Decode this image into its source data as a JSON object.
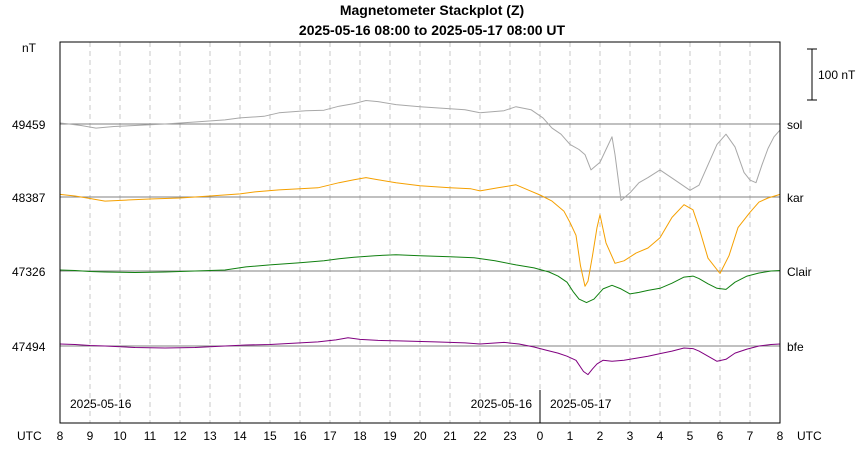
{
  "chart_data": {
    "type": "line",
    "title": "Magnetometer Stackplot (Z)",
    "subtitle": "2025-05-16 08:00 to 2025-05-17 08:00 UT",
    "y_unit_label": "nT",
    "scale_bar_label": "100 nT",
    "x_unit_left": "UTC",
    "x_unit_right": "UTC",
    "x_ticks": [
      "8",
      "9",
      "10",
      "11",
      "12",
      "13",
      "14",
      "15",
      "16",
      "17",
      "18",
      "19",
      "20",
      "21",
      "22",
      "23",
      "0",
      "1",
      "2",
      "3",
      "4",
      "5",
      "6",
      "7",
      "8"
    ],
    "date_labels": [
      "2025-05-16",
      "2025-05-16",
      "2025-05-17"
    ],
    "x_range_hours": [
      0,
      24
    ],
    "grid": "vertical dashed hourly",
    "series": [
      {
        "name": "sol",
        "baseline": "49459",
        "color": "#a8a8a8",
        "points": [
          [
            0,
            2
          ],
          [
            0.3,
            0
          ],
          [
            0.7,
            -3
          ],
          [
            1.2,
            -8
          ],
          [
            1.8,
            -5
          ],
          [
            2.5,
            -3
          ],
          [
            3.5,
            0
          ],
          [
            4.5,
            4
          ],
          [
            5.5,
            8
          ],
          [
            6,
            12
          ],
          [
            6.8,
            15
          ],
          [
            7.3,
            22
          ],
          [
            8.2,
            26
          ],
          [
            8.8,
            27
          ],
          [
            9.3,
            35
          ],
          [
            9.8,
            40
          ],
          [
            10.2,
            46
          ],
          [
            10.6,
            44
          ],
          [
            11.2,
            38
          ],
          [
            12,
            34
          ],
          [
            13,
            30
          ],
          [
            13.5,
            28
          ],
          [
            14,
            22
          ],
          [
            14.8,
            26
          ],
          [
            15.2,
            34
          ],
          [
            15.7,
            28
          ],
          [
            16.1,
            12
          ],
          [
            16.4,
            -8
          ],
          [
            16.7,
            -20
          ],
          [
            17,
            -40
          ],
          [
            17.3,
            -50
          ],
          [
            17.5,
            -60
          ],
          [
            17.7,
            -90
          ],
          [
            18,
            -75
          ],
          [
            18.2,
            -50
          ],
          [
            18.4,
            -25
          ],
          [
            18.5,
            -60
          ],
          [
            18.7,
            -150
          ],
          [
            19,
            -135
          ],
          [
            19.3,
            -115
          ],
          [
            19.6,
            -105
          ],
          [
            20,
            -90
          ],
          [
            20.5,
            -110
          ],
          [
            21,
            -130
          ],
          [
            21.3,
            -120
          ],
          [
            21.6,
            -80
          ],
          [
            21.9,
            -40
          ],
          [
            22.2,
            -20
          ],
          [
            22.5,
            -45
          ],
          [
            22.8,
            -95
          ],
          [
            23,
            -110
          ],
          [
            23.2,
            -115
          ],
          [
            23.4,
            -80
          ],
          [
            23.6,
            -48
          ],
          [
            23.8,
            -25
          ],
          [
            24,
            -12
          ]
        ]
      },
      {
        "name": "kar",
        "baseline": "48387",
        "color": "#f5a000",
        "points": [
          [
            0,
            5
          ],
          [
            0.5,
            2
          ],
          [
            1,
            -3
          ],
          [
            1.5,
            -8
          ],
          [
            2.2,
            -6
          ],
          [
            3,
            -4
          ],
          [
            4,
            -2
          ],
          [
            5,
            2
          ],
          [
            6,
            6
          ],
          [
            6.5,
            10
          ],
          [
            7.3,
            14
          ],
          [
            8,
            16
          ],
          [
            8.6,
            18
          ],
          [
            9.3,
            28
          ],
          [
            9.8,
            34
          ],
          [
            10.2,
            38
          ],
          [
            10.6,
            34
          ],
          [
            11.2,
            28
          ],
          [
            12,
            22
          ],
          [
            13,
            18
          ],
          [
            13.7,
            16
          ],
          [
            14,
            12
          ],
          [
            14.6,
            18
          ],
          [
            15.2,
            24
          ],
          [
            15.6,
            14
          ],
          [
            16,
            4
          ],
          [
            16.4,
            -8
          ],
          [
            16.8,
            -28
          ],
          [
            17,
            -50
          ],
          [
            17.2,
            -75
          ],
          [
            17.35,
            -135
          ],
          [
            17.5,
            -175
          ],
          [
            17.6,
            -165
          ],
          [
            17.75,
            -115
          ],
          [
            17.9,
            -60
          ],
          [
            18,
            -35
          ],
          [
            18.2,
            -90
          ],
          [
            18.5,
            -130
          ],
          [
            18.8,
            -125
          ],
          [
            19.2,
            -110
          ],
          [
            19.6,
            -100
          ],
          [
            20,
            -80
          ],
          [
            20.4,
            -40
          ],
          [
            20.8,
            -15
          ],
          [
            21.1,
            -25
          ],
          [
            21.3,
            -60
          ],
          [
            21.6,
            -120
          ],
          [
            22,
            -150
          ],
          [
            22.3,
            -115
          ],
          [
            22.6,
            -60
          ],
          [
            23,
            -30
          ],
          [
            23.3,
            -10
          ],
          [
            23.6,
            -2
          ],
          [
            24,
            5
          ]
        ]
      },
      {
        "name": "Clair",
        "baseline": "47326",
        "color": "#108010",
        "points": [
          [
            0,
            2
          ],
          [
            0.5,
            1
          ],
          [
            1,
            -1
          ],
          [
            1.5,
            -2
          ],
          [
            2.5,
            -3
          ],
          [
            3.5,
            -2
          ],
          [
            4.5,
            0
          ],
          [
            5.5,
            2
          ],
          [
            6.2,
            8
          ],
          [
            7,
            12
          ],
          [
            8,
            16
          ],
          [
            8.8,
            20
          ],
          [
            9.3,
            24
          ],
          [
            9.8,
            27
          ],
          [
            10.5,
            30
          ],
          [
            11.2,
            32
          ],
          [
            12,
            30
          ],
          [
            13,
            28
          ],
          [
            13.8,
            26
          ],
          [
            14.5,
            20
          ],
          [
            15.2,
            12
          ],
          [
            15.8,
            6
          ],
          [
            16.3,
            -2
          ],
          [
            16.6,
            -10
          ],
          [
            16.9,
            -22
          ],
          [
            17.1,
            -40
          ],
          [
            17.3,
            -55
          ],
          [
            17.55,
            -62
          ],
          [
            17.8,
            -55
          ],
          [
            18.1,
            -35
          ],
          [
            18.4,
            -28
          ],
          [
            18.7,
            -35
          ],
          [
            19,
            -45
          ],
          [
            19.3,
            -42
          ],
          [
            19.6,
            -38
          ],
          [
            20,
            -34
          ],
          [
            20.4,
            -24
          ],
          [
            20.8,
            -12
          ],
          [
            21.1,
            -10
          ],
          [
            21.3,
            -15
          ],
          [
            21.6,
            -25
          ],
          [
            21.9,
            -34
          ],
          [
            22.2,
            -36
          ],
          [
            22.5,
            -22
          ],
          [
            22.9,
            -10
          ],
          [
            23.3,
            -4
          ],
          [
            23.7,
            0
          ],
          [
            24,
            1
          ]
        ]
      },
      {
        "name": "bfe",
        "baseline": "47494",
        "color": "#800080",
        "points": [
          [
            0,
            4
          ],
          [
            0.5,
            3
          ],
          [
            1,
            1
          ],
          [
            1.5,
            0
          ],
          [
            2.5,
            -3
          ],
          [
            3.5,
            -4
          ],
          [
            4.5,
            -3
          ],
          [
            5.5,
            0
          ],
          [
            6.2,
            2
          ],
          [
            7,
            3
          ],
          [
            8,
            6
          ],
          [
            8.6,
            8
          ],
          [
            9.2,
            12
          ],
          [
            9.6,
            16
          ],
          [
            10,
            13
          ],
          [
            10.6,
            11
          ],
          [
            11.3,
            10
          ],
          [
            12.5,
            8
          ],
          [
            13.5,
            6
          ],
          [
            14,
            4
          ],
          [
            14.8,
            7
          ],
          [
            15.3,
            4
          ],
          [
            15.8,
            -2
          ],
          [
            16.2,
            -8
          ],
          [
            16.6,
            -14
          ],
          [
            16.9,
            -20
          ],
          [
            17.2,
            -28
          ],
          [
            17.45,
            -50
          ],
          [
            17.6,
            -56
          ],
          [
            17.75,
            -45
          ],
          [
            17.9,
            -35
          ],
          [
            18.1,
            -28
          ],
          [
            18.4,
            -30
          ],
          [
            18.8,
            -28
          ],
          [
            19.2,
            -24
          ],
          [
            19.6,
            -20
          ],
          [
            20,
            -15
          ],
          [
            20.4,
            -10
          ],
          [
            20.8,
            -4
          ],
          [
            21.1,
            -5
          ],
          [
            21.3,
            -10
          ],
          [
            21.6,
            -20
          ],
          [
            21.9,
            -30
          ],
          [
            22.2,
            -26
          ],
          [
            22.5,
            -14
          ],
          [
            22.9,
            -6
          ],
          [
            23.3,
            0
          ],
          [
            23.7,
            3
          ],
          [
            24,
            4
          ]
        ]
      }
    ]
  }
}
